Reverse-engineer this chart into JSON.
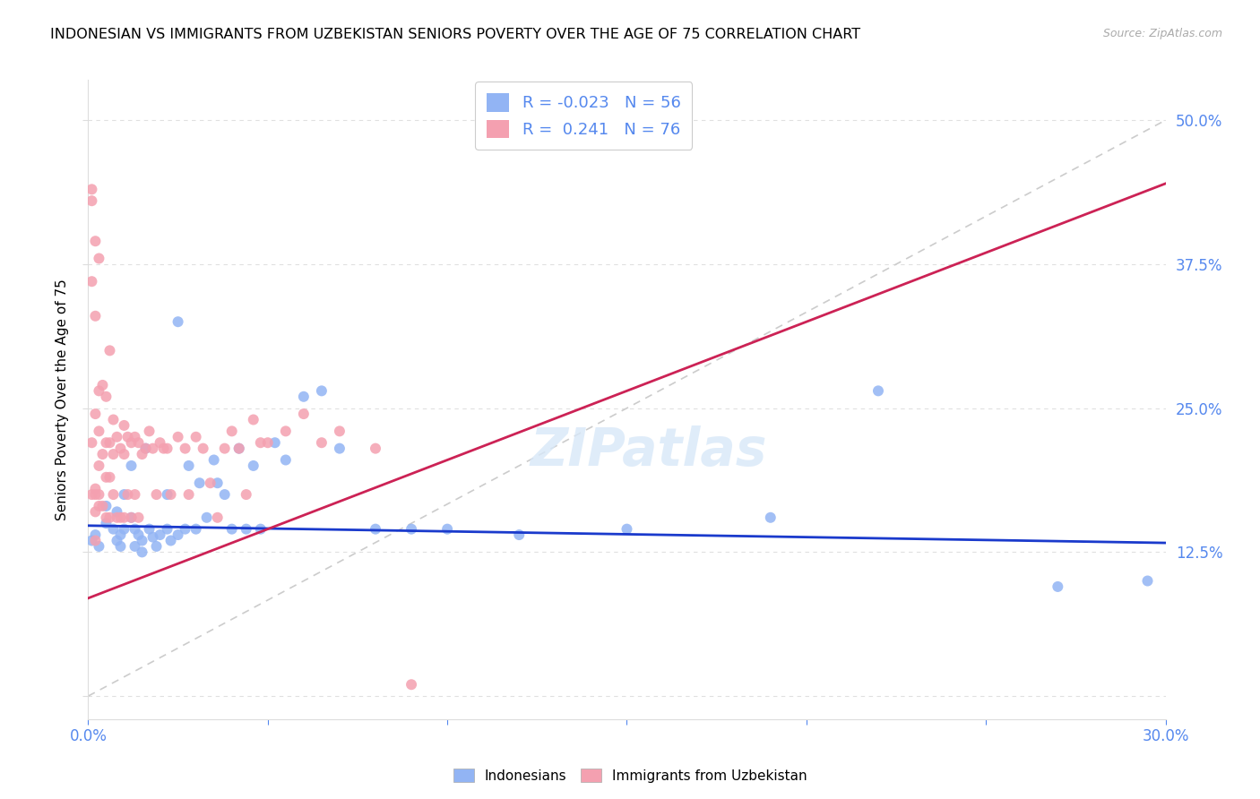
{
  "title": "INDONESIAN VS IMMIGRANTS FROM UZBEKISTAN SENIORS POVERTY OVER THE AGE OF 75 CORRELATION CHART",
  "source": "Source: ZipAtlas.com",
  "ylabel": "Seniors Poverty Over the Age of 75",
  "xlim": [
    0.0,
    0.3
  ],
  "ylim": [
    -0.02,
    0.535
  ],
  "legend_r_blue": "-0.023",
  "legend_n_blue": "56",
  "legend_r_pink": "0.241",
  "legend_n_pink": "76",
  "blue_color": "#92b4f4",
  "pink_color": "#f4a0b0",
  "blue_line_color": "#1a3acc",
  "pink_line_color": "#cc2255",
  "diag_line_color": "#cccccc",
  "label_color": "#5588ee",
  "title_fontsize": 11.5,
  "source_fontsize": 9,
  "blue_points_x": [
    0.001,
    0.002,
    0.003,
    0.005,
    0.005,
    0.007,
    0.008,
    0.008,
    0.009,
    0.009,
    0.01,
    0.01,
    0.012,
    0.012,
    0.013,
    0.013,
    0.014,
    0.015,
    0.015,
    0.016,
    0.017,
    0.018,
    0.019,
    0.02,
    0.022,
    0.022,
    0.023,
    0.025,
    0.025,
    0.027,
    0.028,
    0.03,
    0.031,
    0.033,
    0.035,
    0.036,
    0.038,
    0.04,
    0.042,
    0.044,
    0.046,
    0.048,
    0.052,
    0.055,
    0.06,
    0.065,
    0.07,
    0.08,
    0.09,
    0.1,
    0.12,
    0.15,
    0.19,
    0.22,
    0.27,
    0.295
  ],
  "blue_points_y": [
    0.135,
    0.14,
    0.13,
    0.165,
    0.15,
    0.145,
    0.16,
    0.135,
    0.14,
    0.13,
    0.175,
    0.145,
    0.2,
    0.155,
    0.13,
    0.145,
    0.14,
    0.135,
    0.125,
    0.215,
    0.145,
    0.138,
    0.13,
    0.14,
    0.175,
    0.145,
    0.135,
    0.325,
    0.14,
    0.145,
    0.2,
    0.145,
    0.185,
    0.155,
    0.205,
    0.185,
    0.175,
    0.145,
    0.215,
    0.145,
    0.2,
    0.145,
    0.22,
    0.205,
    0.26,
    0.265,
    0.215,
    0.145,
    0.145,
    0.145,
    0.14,
    0.145,
    0.155,
    0.265,
    0.095,
    0.1
  ],
  "pink_points_x": [
    0.001,
    0.001,
    0.001,
    0.001,
    0.001,
    0.002,
    0.002,
    0.002,
    0.002,
    0.002,
    0.002,
    0.002,
    0.003,
    0.003,
    0.003,
    0.003,
    0.003,
    0.003,
    0.004,
    0.004,
    0.004,
    0.005,
    0.005,
    0.005,
    0.005,
    0.006,
    0.006,
    0.006,
    0.006,
    0.007,
    0.007,
    0.007,
    0.008,
    0.008,
    0.009,
    0.009,
    0.01,
    0.01,
    0.01,
    0.011,
    0.011,
    0.012,
    0.012,
    0.013,
    0.013,
    0.014,
    0.014,
    0.015,
    0.016,
    0.017,
    0.018,
    0.019,
    0.02,
    0.021,
    0.022,
    0.023,
    0.025,
    0.027,
    0.028,
    0.03,
    0.032,
    0.034,
    0.036,
    0.038,
    0.04,
    0.042,
    0.044,
    0.046,
    0.048,
    0.05,
    0.055,
    0.06,
    0.065,
    0.07,
    0.08,
    0.09
  ],
  "pink_points_y": [
    0.44,
    0.43,
    0.36,
    0.22,
    0.175,
    0.395,
    0.33,
    0.245,
    0.18,
    0.175,
    0.16,
    0.135,
    0.38,
    0.265,
    0.23,
    0.2,
    0.175,
    0.165,
    0.27,
    0.21,
    0.165,
    0.26,
    0.22,
    0.19,
    0.155,
    0.3,
    0.22,
    0.19,
    0.155,
    0.24,
    0.21,
    0.175,
    0.225,
    0.155,
    0.215,
    0.155,
    0.235,
    0.21,
    0.155,
    0.225,
    0.175,
    0.22,
    0.155,
    0.225,
    0.175,
    0.22,
    0.155,
    0.21,
    0.215,
    0.23,
    0.215,
    0.175,
    0.22,
    0.215,
    0.215,
    0.175,
    0.225,
    0.215,
    0.175,
    0.225,
    0.215,
    0.185,
    0.155,
    0.215,
    0.23,
    0.215,
    0.175,
    0.24,
    0.22,
    0.22,
    0.23,
    0.245,
    0.22,
    0.23,
    0.215,
    0.01
  ]
}
